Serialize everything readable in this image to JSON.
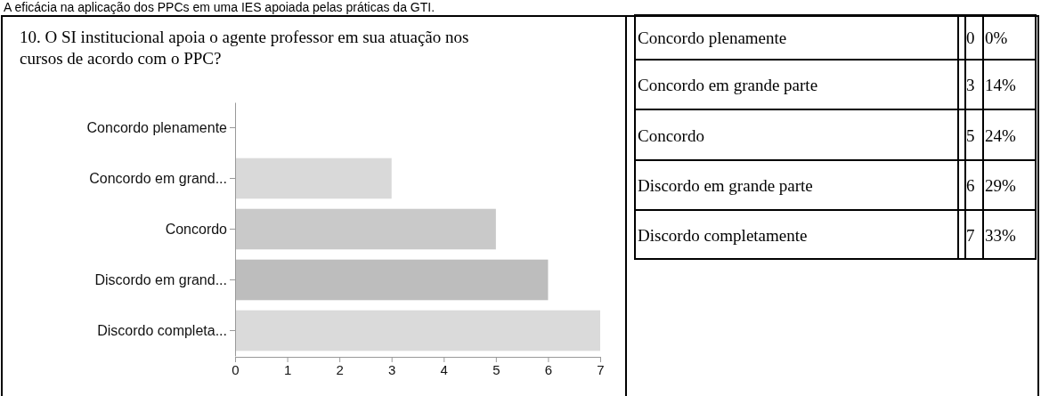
{
  "chart_data": [
    {
      "type": "bar",
      "orientation": "horizontal",
      "title": "10. O SI institucional apoia o agente professor em sua atuação nos cursos de acordo com o PPC?",
      "annotations": [
        "A eficácia na aplicação dos PPCs em uma IES apoiada pelas práticas da GTI."
      ],
      "categories": [
        "Concordo plenamente",
        "Concordo em grand...",
        "Concordo",
        "Discordo em grand...",
        "Discordo completa..."
      ],
      "values": [
        0,
        3,
        5,
        6,
        7
      ],
      "colors": [
        "#d9d9d9",
        "#d9d9d9",
        "#c9c9c9",
        "#bdbdbd",
        "#dadada"
      ],
      "xlim": [
        0,
        7
      ],
      "xticks": [
        0,
        1,
        2,
        3,
        4,
        5,
        6,
        7
      ],
      "grid": false
    },
    {
      "type": "other",
      "categories": [
        "Concordo plenamente",
        "Concordo em grande parte",
        "Concordo",
        "Discordo em grande parte",
        "Discordo completamente"
      ],
      "series": [
        {
          "values": [
            0,
            3,
            5,
            6,
            7
          ]
        },
        {
          "values": [
            0,
            14,
            24,
            29,
            33
          ],
          "value_labels": [
            "0%",
            "14%",
            "24%",
            "29%",
            "33%"
          ]
        }
      ],
      "data_labels": true
    }
  ]
}
